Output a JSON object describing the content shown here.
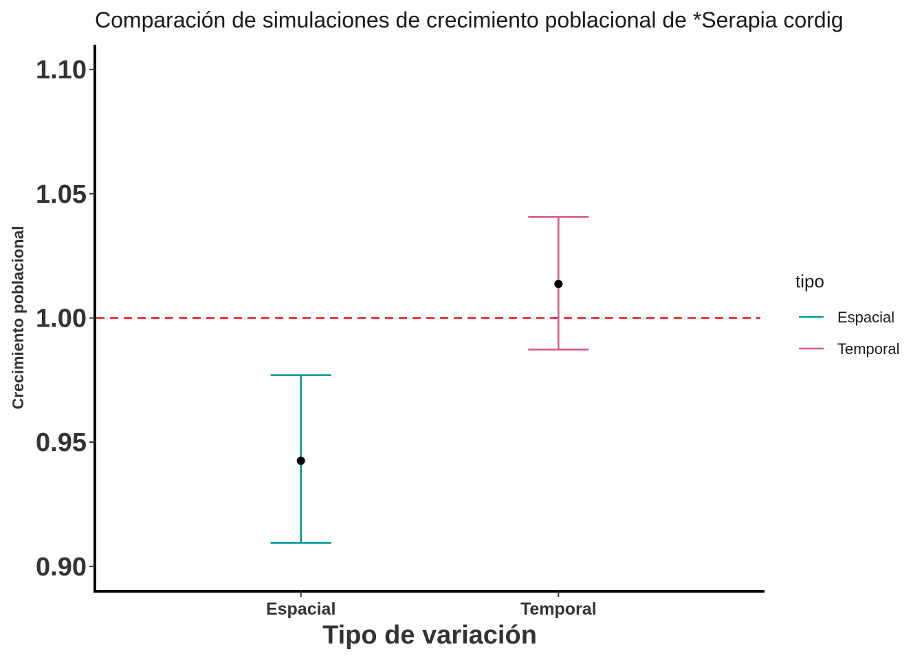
{
  "chart_data": {
    "type": "errorbar",
    "title": "Comparación de simulaciones de crecimiento poblacional de *Serapia cordig",
    "xlabel": "Tipo de variación",
    "ylabel": "Crecimiento poblacional",
    "categories": [
      "Espacial",
      "Temporal"
    ],
    "ylim": [
      0.89,
      1.11
    ],
    "yticks": [
      0.9,
      0.95,
      1.0,
      1.05,
      1.1
    ],
    "ytick_labels": [
      "0.90",
      "0.95",
      "1.00",
      "1.05",
      "1.10"
    ],
    "reference_line": {
      "y": 1.0,
      "style": "dashed",
      "color": "#e8141b"
    },
    "series": [
      {
        "name": "Espacial",
        "category": "Espacial",
        "mean": 0.9425,
        "lower": 0.9095,
        "upper": 0.977,
        "color": "#00999a"
      },
      {
        "name": "Temporal",
        "category": "Temporal",
        "mean": 1.0137,
        "lower": 0.9873,
        "upper": 1.0407,
        "color": "#d45a8a"
      }
    ],
    "point_color": "#000000",
    "grid": false,
    "legend": {
      "title": "tipo",
      "position": "right",
      "entries": [
        "Espacial",
        "Temporal"
      ]
    }
  }
}
